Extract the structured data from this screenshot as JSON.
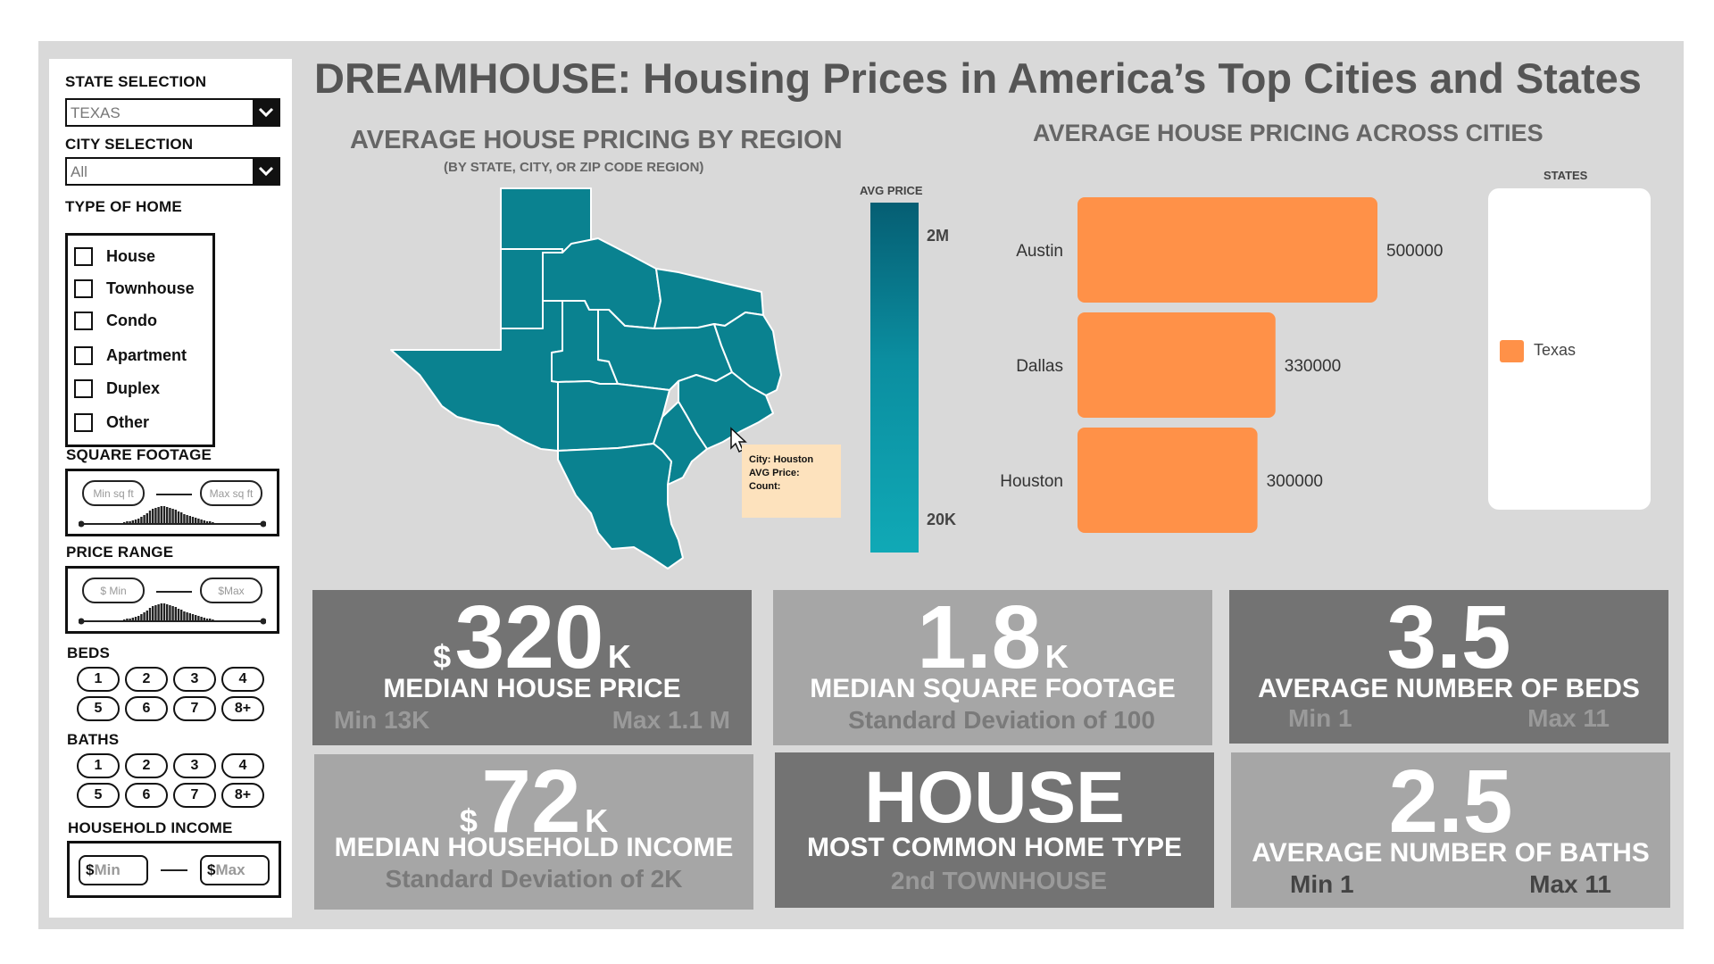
{
  "title": "DREAMHOUSE: Housing Prices in America’s Top Cities and States",
  "sidebar": {
    "state_label": "STATE SELECTION",
    "state_value": "TEXAS",
    "city_label": "CITY SELECTION",
    "city_value": "All",
    "type_label": "TYPE OF HOME",
    "types": [
      "House",
      "Townhouse",
      "Condo",
      "Apartment",
      "Duplex",
      "Other"
    ],
    "sqft_label": "SQUARE FOOTAGE",
    "sqft_min_placeholder": "Min sq ft",
    "sqft_max_placeholder": "Max sq ft",
    "price_label": "PRICE RANGE",
    "price_min_placeholder": "$ Min",
    "price_max_placeholder": "$Max",
    "beds_label": "BEDS",
    "beds": [
      "1",
      "2",
      "3",
      "4",
      "5",
      "6",
      "7",
      "8+"
    ],
    "baths_label": "BATHS",
    "baths": [
      "1",
      "2",
      "3",
      "4",
      "5",
      "6",
      "7",
      "8+"
    ],
    "income_label": "HOUSEHOLD INCOME",
    "income_min_prefix": "$",
    "income_min_placeholder": "Min",
    "income_max_prefix": "$",
    "income_max_placeholder": "Max"
  },
  "map": {
    "title": "AVERAGE HOUSE PRICING BY REGION",
    "subtitle": "(BY STATE, CITY, OR ZIP CODE REGION)",
    "region_color": "#0a8290",
    "tooltip": {
      "city": "City: Houston",
      "avg_price": "AVG Price:",
      "count": "Count:"
    },
    "legend": {
      "title": "AVG PRICE",
      "max_label": "2M",
      "min_label": "20K"
    }
  },
  "chart_data": {
    "type": "bar",
    "orientation": "horizontal",
    "title": "AVERAGE HOUSE PRICING ACROSS CITIES",
    "categories": [
      "Austin",
      "Dallas",
      "Houston"
    ],
    "series": [
      {
        "name": "Texas",
        "values": [
          500000,
          330000,
          300000
        ],
        "color": "#ff9148"
      }
    ],
    "xlim": [
      0,
      560000
    ],
    "data_labels": true,
    "legend_title": "STATES",
    "legend_position": "right"
  },
  "kpis": {
    "median_price": {
      "prefix": "$",
      "value": "320",
      "suffix": "K",
      "label": "MEDIAN HOUSE PRICE",
      "min": "Min 13K",
      "max": "Max 1.1 M"
    },
    "median_sqft": {
      "value": "1.8",
      "suffix": "K",
      "label": "MEDIAN SQUARE FOOTAGE",
      "note": "Standard Deviation of 100"
    },
    "avg_beds": {
      "value": "3.5",
      "label": "AVERAGE NUMBER OF BEDS",
      "min": "Min 1",
      "max": "Max 11"
    },
    "median_income": {
      "prefix": "$",
      "value": "72",
      "suffix": "K",
      "label": "MEDIAN HOUSEHOLD INCOME",
      "note": "Standard Deviation of 2K"
    },
    "common_type": {
      "value": "HOUSE",
      "label": "MOST COMMON HOME TYPE",
      "note": "2nd TOWNHOUSE"
    },
    "avg_baths": {
      "value": "2.5",
      "label": "AVERAGE NUMBER OF BATHS",
      "min": "Min 1",
      "max": "Max 11"
    }
  }
}
